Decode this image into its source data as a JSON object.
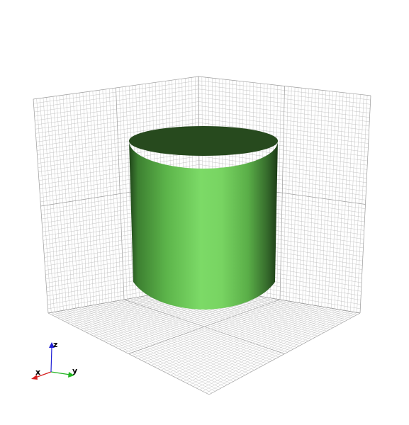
{
  "scene": {
    "background": "#ffffff",
    "grid_color": "#bdbdbd",
    "cylinder": {
      "top_color": "#274a1e",
      "body_colors": [
        "#2b5a22",
        "#55a845",
        "#72d25e",
        "#7ddc68",
        "#6cc659",
        "#3f7a33",
        "#1f3f18"
      ]
    }
  },
  "axes_widget": {
    "x": {
      "label": "x",
      "color": "#d62020"
    },
    "y": {
      "label": "y",
      "color": "#22b522"
    },
    "z": {
      "label": "z",
      "color": "#2020d6"
    }
  }
}
